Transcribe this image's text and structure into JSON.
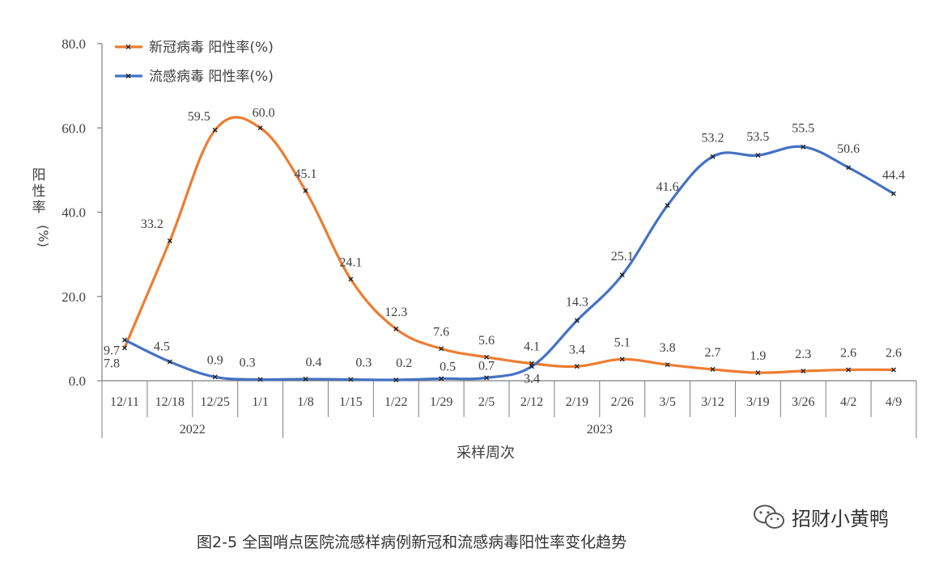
{
  "chart_data": {
    "type": "line",
    "title": "",
    "xlabel": "采样周次",
    "ylabel": "阳性率(%)",
    "ylim": [
      0,
      80
    ],
    "yticks": [
      "0.0",
      "20.0",
      "40.0",
      "60.0",
      "80.0"
    ],
    "categories": [
      "12/11",
      "12/18",
      "12/25",
      "1/1",
      "1/8",
      "1/15",
      "1/22",
      "1/29",
      "2/5",
      "2/12",
      "2/19",
      "2/26",
      "3/5",
      "3/12",
      "3/19",
      "3/26",
      "4/2",
      "4/9"
    ],
    "year_groups": [
      {
        "label": "2022",
        "count": 4
      },
      {
        "label": "2023",
        "count": 14
      }
    ],
    "series": [
      {
        "name": "新冠病毒 阳性率(%)",
        "color": "#ED7D31",
        "values": [
          7.8,
          33.2,
          59.5,
          60.0,
          45.1,
          24.1,
          12.3,
          7.6,
          5.6,
          4.1,
          3.4,
          5.1,
          3.8,
          2.7,
          1.9,
          2.3,
          2.6,
          2.6
        ]
      },
      {
        "name": "流感病毒 阳性率(%)",
        "color": "#4472C4",
        "values": [
          9.7,
          4.5,
          0.9,
          0.3,
          0.4,
          0.3,
          0.2,
          0.5,
          0.7,
          3.4,
          14.3,
          25.1,
          41.6,
          53.2,
          53.5,
          55.5,
          50.6,
          44.4
        ]
      }
    ],
    "legend_position": "top-left",
    "grid": false
  },
  "caption": "图2-5 全国哨点医院流感样病例新冠和流感病毒阳性率变化趋势",
  "watermark": {
    "text": "招财小黄鸭",
    "icon": "wechat-icon"
  }
}
